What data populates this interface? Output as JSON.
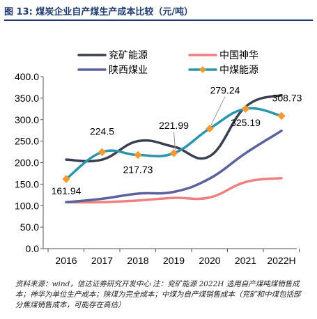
{
  "figure": {
    "title": "图 13:  煤炭企业自产煤生产成本比较（元/吨）",
    "source_note": "资料来源：wind，信达证券研究开发中心  注：兖矿能源 2022H 选用自产煤吨煤销售成本；神华为单位生产成本；陕煤为完全成本；中煤为自产煤销售成本（兖矿和中煤包括部分焦煤销售成本，可能存在高估）"
  },
  "chart_data": {
    "type": "line",
    "title": "",
    "xlabel": "",
    "ylabel": "",
    "categories": [
      "2016",
      "2017",
      "2018",
      "2019",
      "2020",
      "2021",
      "2022H"
    ],
    "ylim": [
      0,
      400
    ],
    "yticks": [
      "0.0",
      "50.0",
      "100.0",
      "150.0",
      "200.0",
      "250.0",
      "300.0",
      "350.0",
      "400.0"
    ],
    "grid": false,
    "legend_position": "top",
    "series": [
      {
        "name": "兖矿能源",
        "color": "#3b3f52",
        "marker": "none",
        "smooth": true,
        "values": [
          207,
          207,
          250,
          237,
          215,
          330,
          357
        ]
      },
      {
        "name": "中国神华",
        "color": "#f08080",
        "marker": "none",
        "smooth": true,
        "values": [
          108,
          108,
          112,
          118,
          119,
          155,
          164
        ]
      },
      {
        "name": "陕西煤业",
        "color": "#5b619c",
        "marker": "none",
        "smooth": true,
        "values": [
          108,
          116,
          128,
          132,
          163,
          222,
          274
        ]
      },
      {
        "name": "中煤能源",
        "color": "#2b95a9",
        "marker": "diamond",
        "marker_color": "#f39a33",
        "smooth": true,
        "values": [
          161.94,
          224.5,
          217.73,
          221.99,
          279.24,
          325.19,
          308.73
        ]
      }
    ],
    "data_labels": [
      {
        "text": "161.94",
        "category": "2016"
      },
      {
        "text": "224.5",
        "category": "2017"
      },
      {
        "text": "217.73",
        "category": "2018"
      },
      {
        "text": "221.99",
        "category": "2019"
      },
      {
        "text": "279.24",
        "category": "2020"
      },
      {
        "text": "325.19",
        "category": "2021"
      },
      {
        "text": "308.73",
        "category": "2022H"
      }
    ]
  }
}
